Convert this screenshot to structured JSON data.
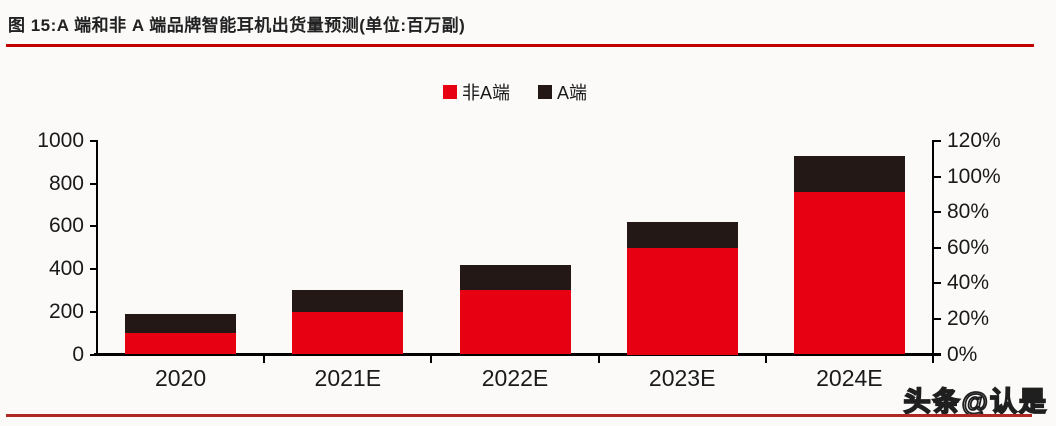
{
  "header": {
    "title": "图 15:A 端和非 A 端品牌智能耳机出货量预测(单位:百万副)"
  },
  "footer": {
    "watermark": "头条@认是"
  },
  "colors": {
    "accent_red": "#c00000",
    "footer_rule": "#b02824",
    "series_non_a": "#e60012",
    "series_a": "#231815",
    "axis_black": "#000000"
  },
  "chart_data": {
    "type": "bar",
    "stacked": true,
    "title": "A 端和非 A 端品牌智能耳机出货量预测",
    "unit": "百万副",
    "categories": [
      "2020",
      "2021E",
      "2022E",
      "2023E",
      "2024E"
    ],
    "series": [
      {
        "name": "非A端",
        "color": "#e60012",
        "values": [
          100,
          200,
          300,
          500,
          760
        ]
      },
      {
        "name": "A端",
        "color": "#231815",
        "values": [
          90,
          100,
          120,
          120,
          170
        ]
      }
    ],
    "totals": [
      190,
      300,
      420,
      620,
      930
    ],
    "left_axis": {
      "min": 0,
      "max": 1000,
      "step": 200,
      "ticks": [
        "0",
        "200",
        "400",
        "600",
        "800",
        "1000"
      ]
    },
    "right_axis": {
      "min_label": "0%",
      "max_label": "120%",
      "ticks": [
        "0%",
        "20%",
        "40%",
        "60%",
        "80%",
        "100%",
        "120%"
      ]
    },
    "legend_position": "top-center",
    "grid": false
  }
}
